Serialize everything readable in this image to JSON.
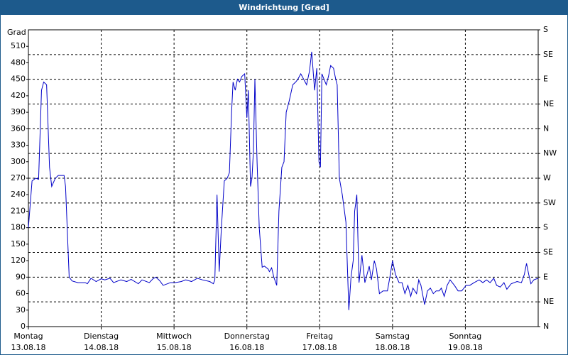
{
  "chart_data": {
    "type": "line",
    "title": "Windrichtung [Grad]",
    "ylabel": "Grad",
    "color": "#0000c8",
    "x": [
      0,
      0.05,
      0.1,
      0.14,
      0.18,
      0.21,
      0.25,
      0.29,
      0.32,
      0.37,
      0.41,
      0.49,
      0.51,
      0.56,
      0.6,
      0.68,
      0.78,
      0.81,
      0.86,
      0.93,
      1.0,
      1.05,
      1.12,
      1.17,
      1.27,
      1.35,
      1.41,
      1.51,
      1.56,
      1.66,
      1.71,
      1.75,
      1.8,
      1.85,
      1.95,
      2.01,
      2.1,
      2.16,
      2.24,
      2.32,
      2.39,
      2.49,
      2.54,
      2.56,
      2.59,
      2.62,
      2.65,
      2.69,
      2.73,
      2.76,
      2.79,
      2.81,
      2.84,
      2.87,
      2.9,
      2.93,
      2.97,
      3.0,
      3.02,
      3.05,
      3.07,
      3.09,
      3.11,
      3.14,
      3.17,
      3.21,
      3.24,
      3.29,
      3.31,
      3.34,
      3.37,
      3.41,
      3.44,
      3.48,
      3.51,
      3.54,
      3.58,
      3.63,
      3.67,
      3.7,
      3.74,
      3.78,
      3.82,
      3.86,
      3.89,
      3.93,
      3.96,
      3.99,
      4.01,
      4.03,
      4.06,
      4.09,
      4.12,
      4.15,
      4.19,
      4.22,
      4.24,
      4.27,
      4.31,
      4.36,
      4.4,
      4.43,
      4.46,
      4.48,
      4.51,
      4.54,
      4.58,
      4.62,
      4.65,
      4.68,
      4.71,
      4.75,
      4.78,
      4.82,
      4.87,
      4.93,
      4.97,
      5.0,
      5.04,
      5.09,
      5.13,
      5.17,
      5.21,
      5.25,
      5.28,
      5.33,
      5.36,
      5.39,
      5.44,
      5.48,
      5.52,
      5.56,
      5.6,
      5.64,
      5.67,
      5.71,
      5.75,
      5.79,
      5.85,
      5.9,
      5.95,
      6.01,
      6.06,
      6.12,
      6.19,
      6.24,
      6.29,
      6.34,
      6.39,
      6.43,
      6.48,
      6.53,
      6.57,
      6.63,
      6.71,
      6.77,
      6.81,
      6.84,
      6.87,
      6.9,
      6.94,
      7.0
    ],
    "values": [
      180,
      265,
      270,
      268,
      430,
      445,
      440,
      290,
      255,
      270,
      275,
      275,
      255,
      90,
      83,
      80,
      80,
      78,
      88,
      82,
      87,
      85,
      88,
      80,
      85,
      82,
      86,
      78,
      85,
      80,
      87,
      90,
      84,
      75,
      80,
      80,
      82,
      85,
      82,
      88,
      85,
      82,
      78,
      85,
      240,
      100,
      180,
      265,
      270,
      280,
      390,
      445,
      430,
      450,
      445,
      455,
      460,
      380,
      430,
      255,
      270,
      320,
      450,
      300,
      180,
      108,
      110,
      105,
      100,
      107,
      90,
      75,
      210,
      290,
      300,
      390,
      410,
      440,
      445,
      450,
      460,
      450,
      440,
      465,
      500,
      430,
      470,
      300,
      290,
      460,
      450,
      440,
      455,
      475,
      470,
      450,
      440,
      270,
      240,
      190,
      30,
      90,
      120,
      210,
      240,
      80,
      130,
      80,
      95,
      110,
      85,
      120,
      105,
      60,
      65,
      65,
      95,
      120,
      95,
      80,
      80,
      60,
      75,
      55,
      70,
      60,
      85,
      75,
      40,
      65,
      70,
      60,
      65,
      65,
      70,
      55,
      75,
      85,
      75,
      65,
      65,
      75,
      75,
      80,
      85,
      80,
      85,
      80,
      88,
      75,
      72,
      80,
      68,
      78,
      82,
      80,
      95,
      115,
      95,
      78,
      85,
      88
    ],
    "xlim": [
      0,
      7
    ],
    "xticks": [
      {
        "value": 0,
        "label": "Montag"
      },
      {
        "value": 1,
        "label": "Dienstag"
      },
      {
        "value": 2,
        "label": "Mittwoch"
      },
      {
        "value": 3,
        "label": "Donnerstag"
      },
      {
        "value": 4,
        "label": "Freitag"
      },
      {
        "value": 5,
        "label": "Samstag"
      },
      {
        "value": 6,
        "label": "Sonntag"
      }
    ],
    "xtick_dates": [
      "13.08.18",
      "14.08.18",
      "15.08.18",
      "16.08.18",
      "17.08.18",
      "18.08.18",
      "19.08.18"
    ],
    "ylim": [
      0,
      540
    ],
    "yticks": [
      0,
      30,
      60,
      90,
      120,
      150,
      180,
      210,
      240,
      270,
      300,
      330,
      360,
      390,
      420,
      450,
      480,
      510
    ],
    "y2lim": [
      0,
      540
    ],
    "y2ticks": [
      {
        "value": 0,
        "label": "N"
      },
      {
        "value": 45,
        "label": "NE"
      },
      {
        "value": 90,
        "label": "E"
      },
      {
        "value": 135,
        "label": "SE"
      },
      {
        "value": 180,
        "label": "S"
      },
      {
        "value": 225,
        "label": "SW"
      },
      {
        "value": 270,
        "label": "W"
      },
      {
        "value": 315,
        "label": "NW"
      },
      {
        "value": 360,
        "label": "N"
      },
      {
        "value": 405,
        "label": "NE"
      },
      {
        "value": 450,
        "label": "E"
      },
      {
        "value": 495,
        "label": "SE"
      },
      {
        "value": 540,
        "label": "S"
      }
    ],
    "grid": true
  }
}
